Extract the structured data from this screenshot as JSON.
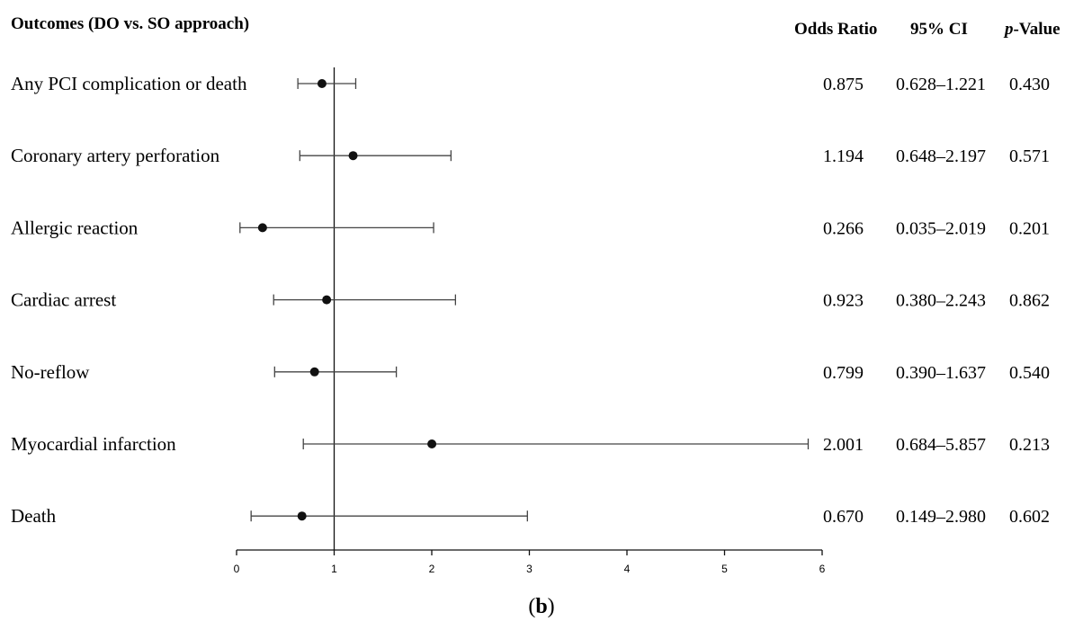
{
  "caption": "(b)",
  "headers": {
    "outcomes": "Outcomes (DO vs. SO approach)",
    "odds_ratio": "Odds Ratio",
    "ci": "95% CI",
    "p_value_italic": "p",
    "p_value_rest": "-Value"
  },
  "colors": {
    "ink": "#111111",
    "axis": "#444444"
  },
  "chart_data": {
    "type": "forest",
    "reference_line": 1,
    "xlim": [
      0,
      6
    ],
    "x_ticks": [
      "0",
      "1",
      "2",
      "3",
      "4",
      "5",
      "6"
    ],
    "rows": [
      {
        "label": "Any PCI complication or death",
        "or": 0.875,
        "low": 0.628,
        "high": 1.221,
        "or_text": "0.875",
        "ci_text": "0.628–1.221",
        "p_text": "0.430"
      },
      {
        "label": "Coronary artery perforation",
        "or": 1.194,
        "low": 0.648,
        "high": 2.197,
        "or_text": "1.194",
        "ci_text": "0.648–2.197",
        "p_text": "0.571"
      },
      {
        "label": "Allergic reaction",
        "or": 0.266,
        "low": 0.035,
        "high": 2.019,
        "or_text": "0.266",
        "ci_text": "0.035–2.019",
        "p_text": "0.201"
      },
      {
        "label": "Cardiac arrest",
        "or": 0.923,
        "low": 0.38,
        "high": 2.243,
        "or_text": "0.923",
        "ci_text": "0.380–2.243",
        "p_text": "0.862"
      },
      {
        "label": "No-reflow",
        "or": 0.799,
        "low": 0.39,
        "high": 1.637,
        "or_text": "0.799",
        "ci_text": "0.390–1.637",
        "p_text": "0.540"
      },
      {
        "label": "Myocardial infarction",
        "or": 2.001,
        "low": 0.684,
        "high": 5.857,
        "or_text": "2.001",
        "ci_text": "0.684–5.857",
        "p_text": "0.213"
      },
      {
        "label": "Death",
        "or": 0.67,
        "low": 0.149,
        "high": 2.98,
        "or_text": "0.670",
        "ci_text": "0.149–2.980",
        "p_text": "0.602"
      }
    ]
  }
}
